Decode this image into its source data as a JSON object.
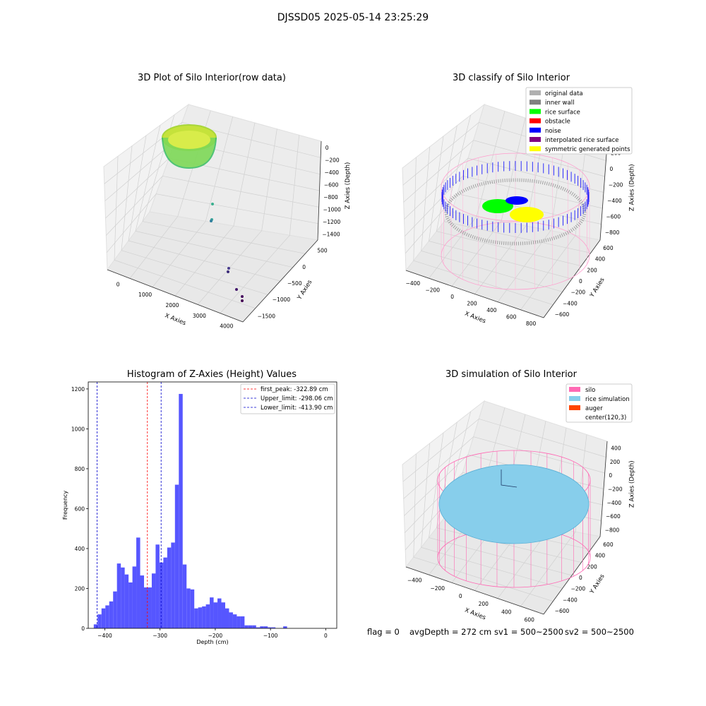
{
  "suptitle": "DJSSD05 2025-05-14 23:25:29",
  "colors": {
    "hist_bar": "#4d4dff",
    "first_peak": "#ff0000",
    "limits": "#0000cc",
    "silo": "#ff69b4",
    "rice_simulation": "#87ceeb",
    "auger": "#ff4500",
    "pane": "#f2f2f2",
    "grid": "#d0d0d0"
  },
  "panel_raw": {
    "title": "3D Plot of Silo Interior(row data)",
    "xlabel": "X Axies",
    "ylabel": "Y Axies",
    "zlabel": "Z Axies (Depth)",
    "xticks": [
      "0",
      "1000",
      "2000",
      "3000",
      "4000"
    ],
    "yticks": [
      "500",
      "0",
      "−500",
      "−1000",
      "−1500"
    ],
    "zticks": [
      "0",
      "−200",
      "−400",
      "−600",
      "−800",
      "−1000",
      "−1200",
      "−1400"
    ]
  },
  "panel_classify": {
    "title": "3D classify of Silo Interior",
    "xlabel": "X Axies",
    "ylabel": "Y Axies",
    "zlabel": "Z Axies (Depth)",
    "xticks": [
      "−400",
      "−200",
      "0",
      "200",
      "400",
      "600",
      "800"
    ],
    "yticks": [
      "600",
      "400",
      "200",
      "0",
      "−200",
      "−400",
      "−600"
    ],
    "zticks": [
      "200",
      "0",
      "−200",
      "−400",
      "−600",
      "−800"
    ],
    "legend": [
      {
        "label": "original data",
        "color": "#b0b0b0"
      },
      {
        "label": "inner wall",
        "color": "#808080"
      },
      {
        "label": "rice surface",
        "color": "#00ff00"
      },
      {
        "label": "obstacle",
        "color": "#ff0000"
      },
      {
        "label": "noise",
        "color": "#0000ff"
      },
      {
        "label": "interpolated rice surface",
        "color": "#800080"
      },
      {
        "label": "symmetric generated points",
        "color": "#ffff00"
      }
    ]
  },
  "panel_sim": {
    "title": "3D simulation of Silo Interior",
    "xlabel": "X Axies",
    "ylabel": "Y Axies",
    "zlabel": "Z Axies (Depth)",
    "xticks": [
      "−400",
      "−200",
      "0",
      "200",
      "400",
      "600"
    ],
    "yticks": [
      "600",
      "400",
      "200",
      "0",
      "−200",
      "−400",
      "−600"
    ],
    "zticks": [
      "400",
      "200",
      "0",
      "−200",
      "−400",
      "−600",
      "−800"
    ],
    "legend": [
      {
        "label": "silo",
        "color": "#ff69b4"
      },
      {
        "label": "rice simulation",
        "color": "#87ceeb"
      },
      {
        "label": "auger",
        "color": "#ff4500"
      },
      {
        "label": "center(120,3)",
        "color": ""
      }
    ]
  },
  "footer": {
    "flag": "flag = 0",
    "avg": "avgDepth = 272 cm",
    "sv1": "sv1 = 500~2500",
    "sv2": "sv2 = 500~2500"
  },
  "chart_data": {
    "type": "bar",
    "title": "Histogram of Z-Axies (Height) Values",
    "xlabel": "Depth (cm)",
    "ylabel": "Frequency",
    "xlim": [
      -430,
      20
    ],
    "ylim": [
      0,
      1235
    ],
    "xticks": [
      -400,
      -300,
      -200,
      -100,
      0
    ],
    "xtick_labels": [
      "−400",
      "−300",
      "−200",
      "−100",
      "0"
    ],
    "yticks": [
      0,
      200,
      400,
      600,
      800,
      1000,
      1200
    ],
    "bin_start": -420,
    "bin_width": 7,
    "values": [
      20,
      70,
      100,
      115,
      135,
      185,
      325,
      305,
      270,
      230,
      310,
      455,
      265,
      205,
      205,
      275,
      420,
      330,
      355,
      405,
      430,
      720,
      1175,
      320,
      200,
      195,
      100,
      105,
      110,
      120,
      155,
      130,
      150,
      130,
      100,
      80,
      70,
      60,
      60,
      15,
      15,
      15,
      5,
      10,
      10,
      5,
      5,
      0,
      0,
      10,
      0
    ],
    "lines": [
      {
        "name": "first_peak: -322.89 cm",
        "x": -322.89,
        "color": "#ff0000"
      },
      {
        "name": "Upper_limit: -298.06 cm",
        "x": -298.06,
        "color": "#0000cc"
      },
      {
        "name": "Lower_limit: -413.90 cm",
        "x": -413.9,
        "color": "#0000cc"
      }
    ]
  }
}
